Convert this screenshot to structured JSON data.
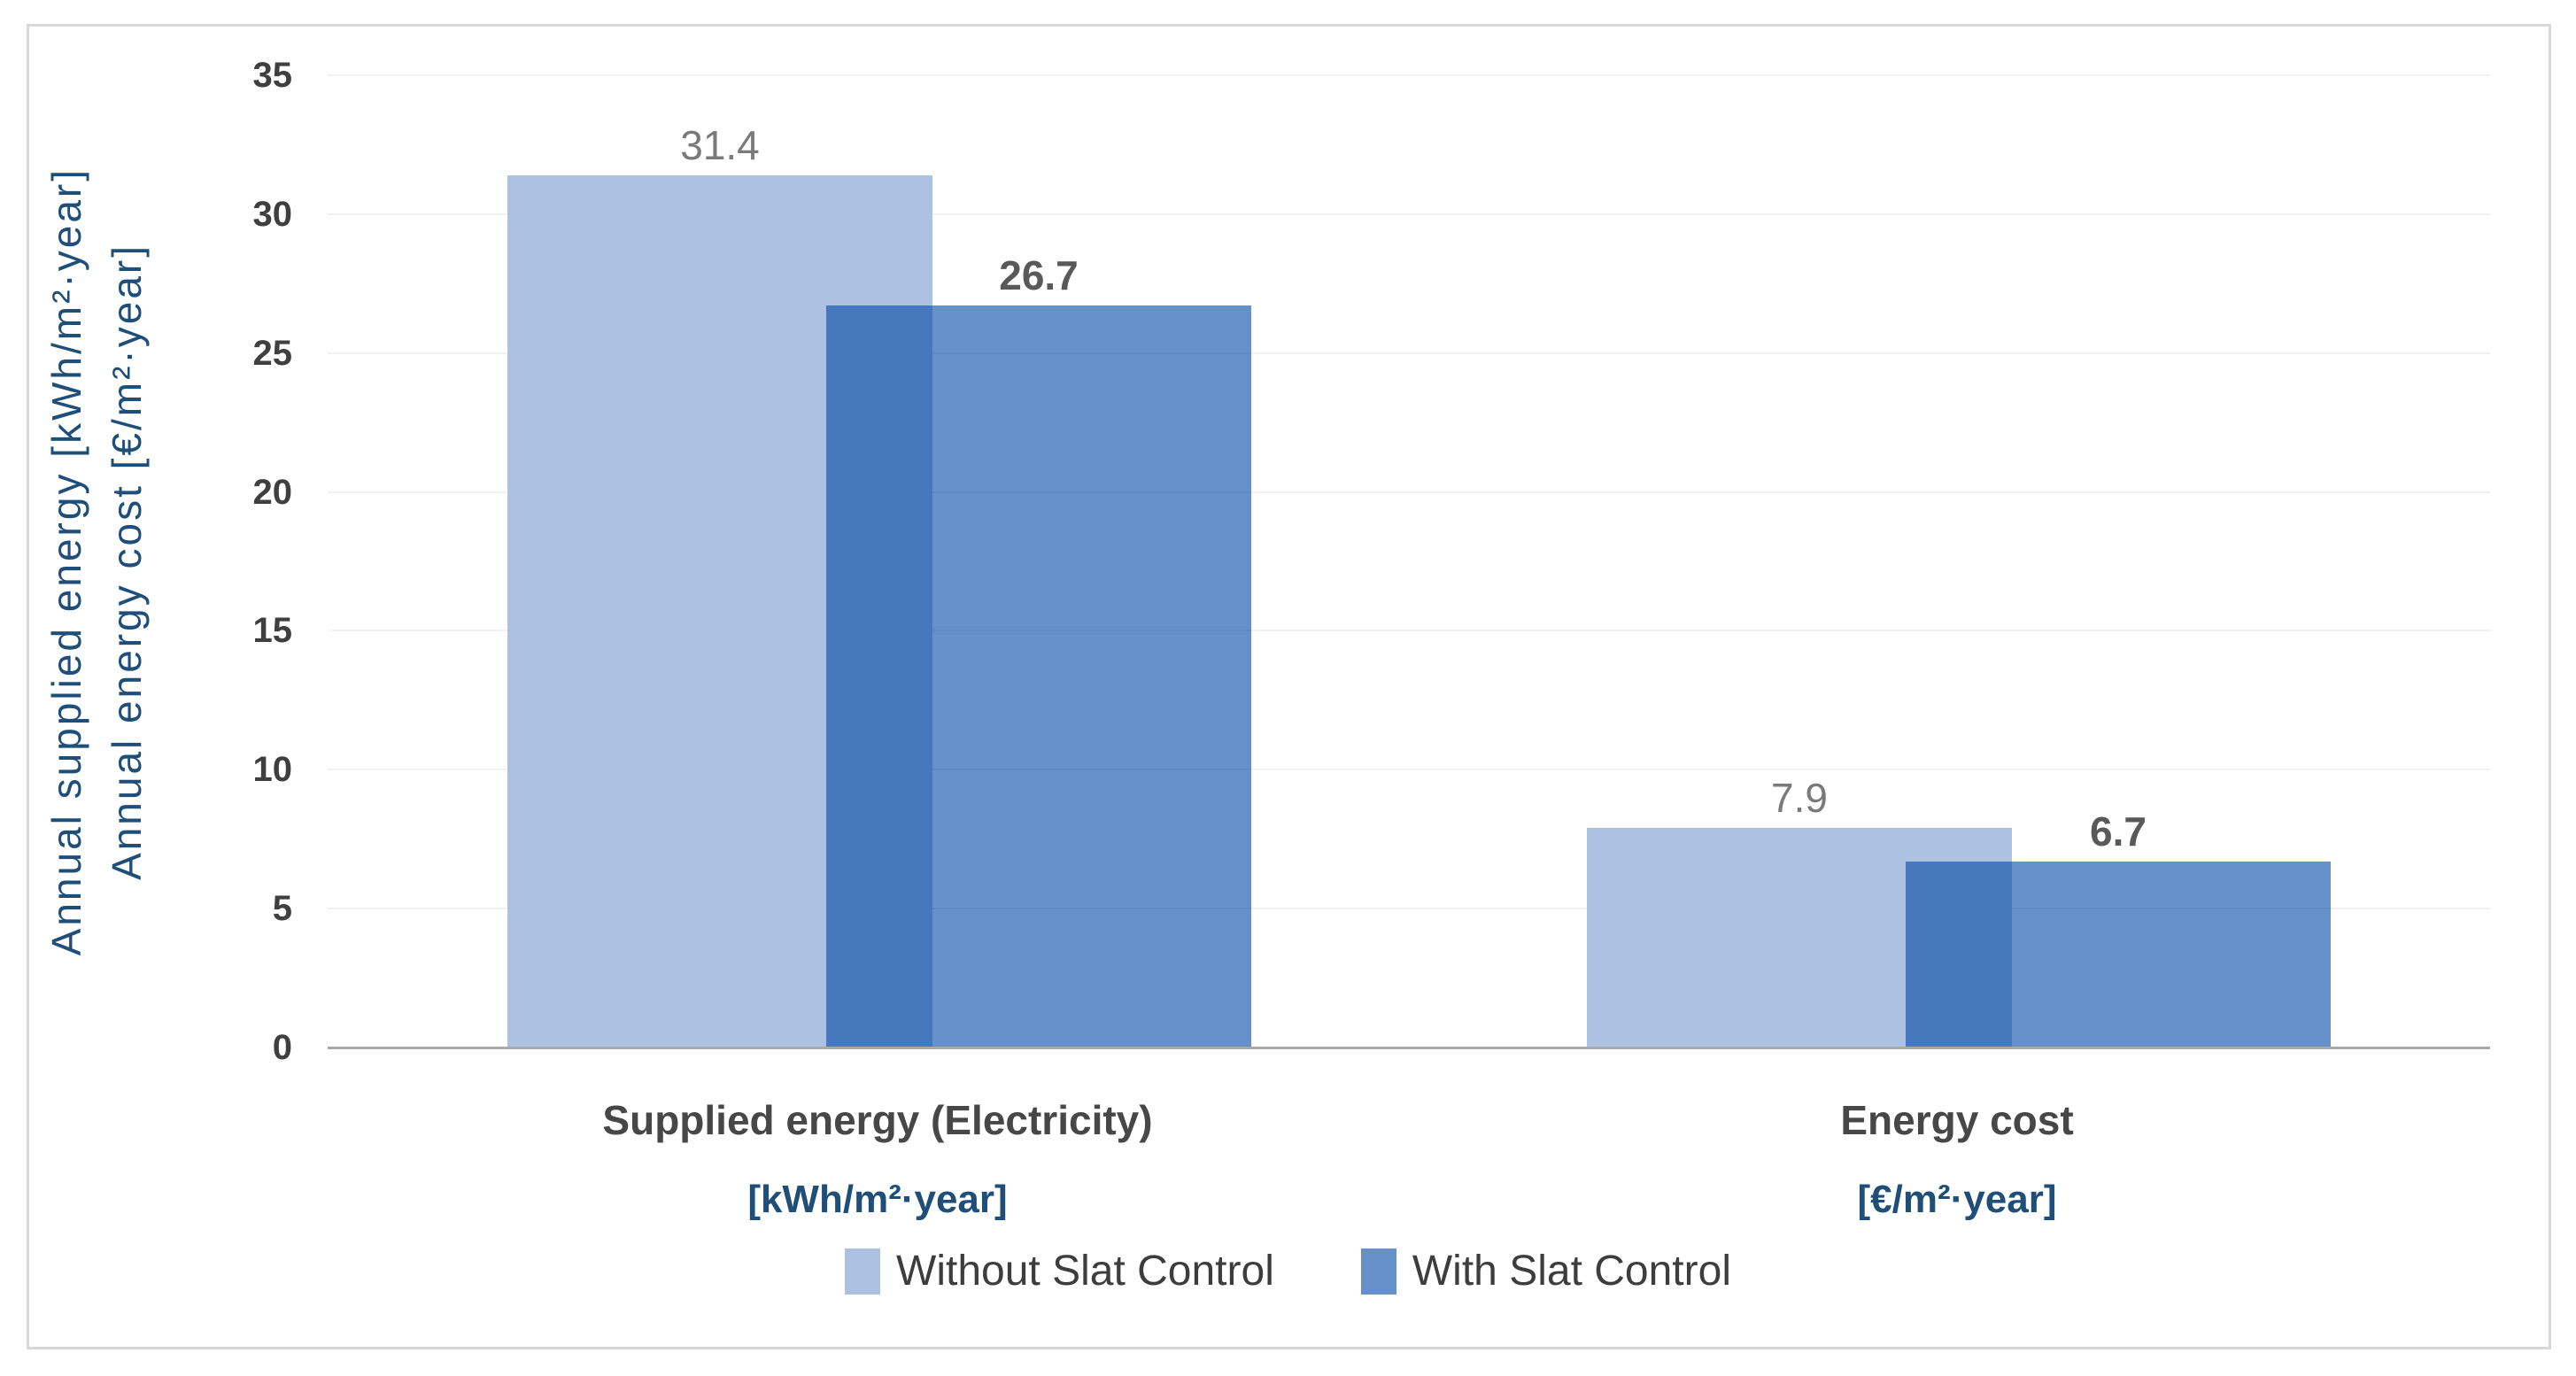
{
  "chart_data": {
    "type": "bar",
    "title": "",
    "categories": [
      {
        "label": "Supplied energy (Electricity)",
        "unit": "[kWh/m²·year]"
      },
      {
        "label": "Energy cost",
        "unit": "[€/m²·year]"
      }
    ],
    "series": [
      {
        "name": "Without Slat Control",
        "values": [
          31.4,
          7.9
        ],
        "data_labels": [
          "31.4",
          "7.9"
        ],
        "color": "#adc1e3",
        "label_style": "reg"
      },
      {
        "name": "With Slat Control",
        "values": [
          26.7,
          6.7
        ],
        "data_labels": [
          "26.7",
          "6.7"
        ],
        "color": "rgba(0,72,163,0.6)",
        "label_style": "bold"
      }
    ],
    "y_axis": {
      "min": 0,
      "max": 35,
      "step": 5,
      "ticks": [
        0,
        5,
        10,
        15,
        20,
        25,
        30,
        35
      ],
      "tick_labels": [
        "0",
        "5",
        "10",
        "15",
        "20",
        "25",
        "30",
        "35"
      ]
    },
    "axis_titles": [
      "Annual supplied energy  [kWh/m²·year]",
      "Annual energy cost [€/m²·year]"
    ],
    "grid": true,
    "legend_position": "bottom"
  },
  "colors": {
    "without_series": "#adc1e3",
    "with_series_over_white": "#6191c8",
    "overlap": "#4a7dbc",
    "axis_line": "#a9a9a9",
    "gridline": "#f1f1f1",
    "tick_text": "#3f3f3f",
    "category_text": "#474747",
    "unit_text": "#1f4e79",
    "frame_border": "#d8d8d8"
  }
}
